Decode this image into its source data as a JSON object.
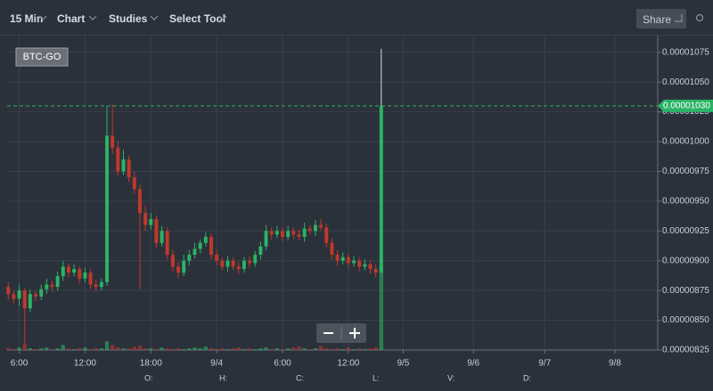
{
  "toolbar": {
    "interval": "15 Min",
    "chart": "Chart",
    "studies": "Studies",
    "select_tool": "Select Tool",
    "share": "Share"
  },
  "chart_data": {
    "type": "candlestick",
    "symbol": "BTC-GO",
    "x": [
      5,
      5.5,
      6,
      6.5,
      7,
      7.5,
      8,
      8.5,
      9,
      9.5,
      10,
      10.5,
      11,
      11.5,
      12,
      12.5,
      13,
      13.5,
      14,
      14.5,
      15,
      15.5,
      16,
      16.5,
      17,
      17.5,
      18,
      18.5,
      19,
      19.5,
      20,
      20.5,
      21,
      21.5,
      22,
      22.5,
      23,
      23.5,
      24,
      24.5,
      25,
      25.5,
      26,
      26.5,
      27,
      27.5,
      28,
      28.5,
      29,
      29.5,
      30,
      30.5,
      31,
      31.5,
      32,
      32.5,
      33,
      33.5,
      34,
      34.5,
      35,
      35.5,
      36,
      36.5,
      37,
      37.5,
      38,
      38.5,
      39
    ],
    "open": [
      8.78e-06,
      8.72e-06,
      8.68e-06,
      8.75e-06,
      8.6e-06,
      8.72e-06,
      8.7e-06,
      8.76e-06,
      8.8e-06,
      8.78e-06,
      8.87e-06,
      8.95e-06,
      8.9e-06,
      8.93e-06,
      8.85e-06,
      8.9e-06,
      8.8e-06,
      8.78e-06,
      8.82e-06,
      1.005e-05,
      9.95e-06,
      9.75e-06,
      9.85e-06,
      9.7e-06,
      9.6e-06,
      9.4e-06,
      9.3e-06,
      9.35e-06,
      9.15e-06,
      9.25e-06,
      9.05e-06,
      8.95e-06,
      8.9e-06,
      9e-06,
      9.05e-06,
      9.1e-06,
      9.15e-06,
      9.2e-06,
      9.05e-06,
      9e-06,
      8.95e-06,
      9e-06,
      8.95e-06,
      8.93e-06,
      9e-06,
      8.98e-06,
      9.05e-06,
      9.12e-06,
      9.25e-06,
      9.22e-06,
      9.25e-06,
      9.2e-06,
      9.25e-06,
      9.22e-06,
      9.2e-06,
      9.27e-06,
      9.25e-06,
      9.3e-06,
      9.28e-06,
      9.15e-06,
      9.05e-06,
      9e-06,
      9.03e-06,
      8.98e-06,
      9e-06,
      8.95e-06,
      8.97e-06,
      8.93e-06,
      8.9e-06
    ],
    "high": [
      8.82e-06,
      8.75e-06,
      8.8e-06,
      8.77e-06,
      8.76e-06,
      8.75e-06,
      8.8e-06,
      8.85e-06,
      8.83e-06,
      8.91e-06,
      9e-06,
      8.98e-06,
      8.97e-06,
      8.96e-06,
      8.94e-06,
      8.93e-06,
      8.84e-06,
      8.85e-06,
      1.03e-05,
      1.031e-05,
      1e-05,
      9.93e-06,
      9.88e-06,
      9.75e-06,
      9.64e-06,
      9.46e-06,
      9.4e-06,
      9.38e-06,
      9.29e-06,
      9.28e-06,
      9.09e-06,
      8.99e-06,
      9.05e-06,
      9.09e-06,
      9.15e-06,
      9.18e-06,
      9.24e-06,
      9.23e-06,
      9.09e-06,
      9.03e-06,
      9.04e-06,
      9.03e-06,
      8.99e-06,
      9.03e-06,
      9.04e-06,
      9.08e-06,
      9.16e-06,
      9.3e-06,
      9.28e-06,
      9.29e-06,
      9.28e-06,
      9.29e-06,
      9.28e-06,
      9.26e-06,
      9.32e-06,
      9.3e-06,
      9.34e-06,
      9.35e-06,
      9.31e-06,
      9.19e-06,
      9.09e-06,
      9.07e-06,
      9.06e-06,
      9.04e-06,
      9.03e-06,
      9.01e-06,
      9e-06,
      8.97e-06,
      1.078e-05
    ],
    "low": [
      8.67e-06,
      8.64e-06,
      8.62e-06,
      8.31e-06,
      8.57e-06,
      8.66e-06,
      8.67e-06,
      8.72e-06,
      8.74e-06,
      8.75e-06,
      8.83e-06,
      8.86e-06,
      8.87e-06,
      8.81e-06,
      8.82e-06,
      8.76e-06,
      8.74e-06,
      8.75e-06,
      8.79e-06,
      9.9e-06,
      9.71e-06,
      9.72e-06,
      9.66e-06,
      9.56e-06,
      8.76e-06,
      9.25e-06,
      9.26e-06,
      9.11e-06,
      9.12e-06,
      9.01e-06,
      8.91e-06,
      8.85e-06,
      8.87e-06,
      8.96e-06,
      9.02e-06,
      9.06e-06,
      9.12e-06,
      9.01e-06,
      8.96e-06,
      8.92e-06,
      8.91e-06,
      8.92e-06,
      8.89e-06,
      8.9e-06,
      8.94e-06,
      8.95e-06,
      9.01e-06,
      9.09e-06,
      9.18e-06,
      9.19e-06,
      9.16e-06,
      9.17e-06,
      9.18e-06,
      9.17e-06,
      9.16e-06,
      9.22e-06,
      9.21e-06,
      9.25e-06,
      9.11e-06,
      9.01e-06,
      8.96e-06,
      8.97e-06,
      8.94e-06,
      8.95e-06,
      8.91e-06,
      8.92e-06,
      8.89e-06,
      8.86e-06,
      8.9e-06
    ],
    "close": [
      8.72e-06,
      8.68e-06,
      8.75e-06,
      8.6e-06,
      8.72e-06,
      8.7e-06,
      8.76e-06,
      8.8e-06,
      8.78e-06,
      8.87e-06,
      8.95e-06,
      8.9e-06,
      8.93e-06,
      8.85e-06,
      8.9e-06,
      8.8e-06,
      8.78e-06,
      8.82e-06,
      1.005e-05,
      9.95e-06,
      9.75e-06,
      9.85e-06,
      9.7e-06,
      9.6e-06,
      9.4e-06,
      9.3e-06,
      9.35e-06,
      9.15e-06,
      9.25e-06,
      9.05e-06,
      8.95e-06,
      8.9e-06,
      9e-06,
      9.05e-06,
      9.1e-06,
      9.15e-06,
      9.2e-06,
      9.05e-06,
      9e-06,
      8.95e-06,
      9e-06,
      8.95e-06,
      8.93e-06,
      9e-06,
      8.98e-06,
      9.05e-06,
      9.12e-06,
      9.25e-06,
      9.22e-06,
      9.25e-06,
      9.2e-06,
      9.25e-06,
      9.22e-06,
      9.2e-06,
      9.27e-06,
      9.25e-06,
      9.3e-06,
      9.28e-06,
      9.15e-06,
      9.05e-06,
      9e-06,
      9.03e-06,
      8.98e-06,
      9e-06,
      8.95e-06,
      8.97e-06,
      8.93e-06,
      8.9e-06,
      1.03e-05
    ],
    "volume": [
      2,
      1,
      3,
      8,
      2,
      1,
      2,
      3,
      1,
      2,
      6,
      2,
      1,
      2,
      3,
      1,
      2,
      2,
      10,
      6,
      3,
      2,
      2,
      4,
      5,
      2,
      2,
      1,
      3,
      2,
      1,
      2,
      1,
      2,
      3,
      2,
      4,
      2,
      1,
      2,
      1,
      2,
      3,
      1,
      2,
      1,
      2,
      3,
      1,
      2,
      1,
      2,
      3,
      4,
      2,
      1,
      2,
      5,
      2,
      1,
      2,
      1,
      3,
      1,
      2,
      1,
      2,
      3,
      100
    ],
    "xlim": [
      4.9,
      64.2
    ],
    "xticks": [
      {
        "value": 6,
        "label": "6:00"
      },
      {
        "value": 12,
        "label": "12:00"
      },
      {
        "value": 18,
        "label": "18:00"
      },
      {
        "value": 24,
        "label": "9/4"
      },
      {
        "value": 30,
        "label": "6:00"
      },
      {
        "value": 36,
        "label": "12:00"
      },
      {
        "value": 41,
        "label": "9/5"
      },
      {
        "value": 47.4,
        "label": "9/6"
      },
      {
        "value": 53.9,
        "label": "9/7"
      },
      {
        "value": 60.3,
        "label": "9/8"
      }
    ],
    "ylim": [
      8.25e-06,
      1.089e-05
    ],
    "yticks": [
      {
        "value": 8.25e-06,
        "label": "0.00000825"
      },
      {
        "value": 8.5e-06,
        "label": "0.00000850"
      },
      {
        "value": 8.75e-06,
        "label": "0.00000875"
      },
      {
        "value": 9e-06,
        "label": "0.00000900"
      },
      {
        "value": 9.25e-06,
        "label": "0.00000925"
      },
      {
        "value": 9.5e-06,
        "label": "0.00000950"
      },
      {
        "value": 9.75e-06,
        "label": "0.00000975"
      },
      {
        "value": 1e-05,
        "label": "0.00001000"
      },
      {
        "value": 1.025e-05,
        "label": "0.00001025"
      },
      {
        "value": 1.05e-05,
        "label": "0.00001050"
      },
      {
        "value": 1.075e-05,
        "label": "0.00001075"
      }
    ],
    "grid": true,
    "up_color": "#2bb466",
    "down_color": "#c0392b",
    "last_price": {
      "value": 1.03e-05,
      "label": "0.00001030"
    }
  },
  "ohlc_legend": [
    "O:",
    "H:",
    "C:",
    "L:",
    "V:",
    "D:"
  ]
}
